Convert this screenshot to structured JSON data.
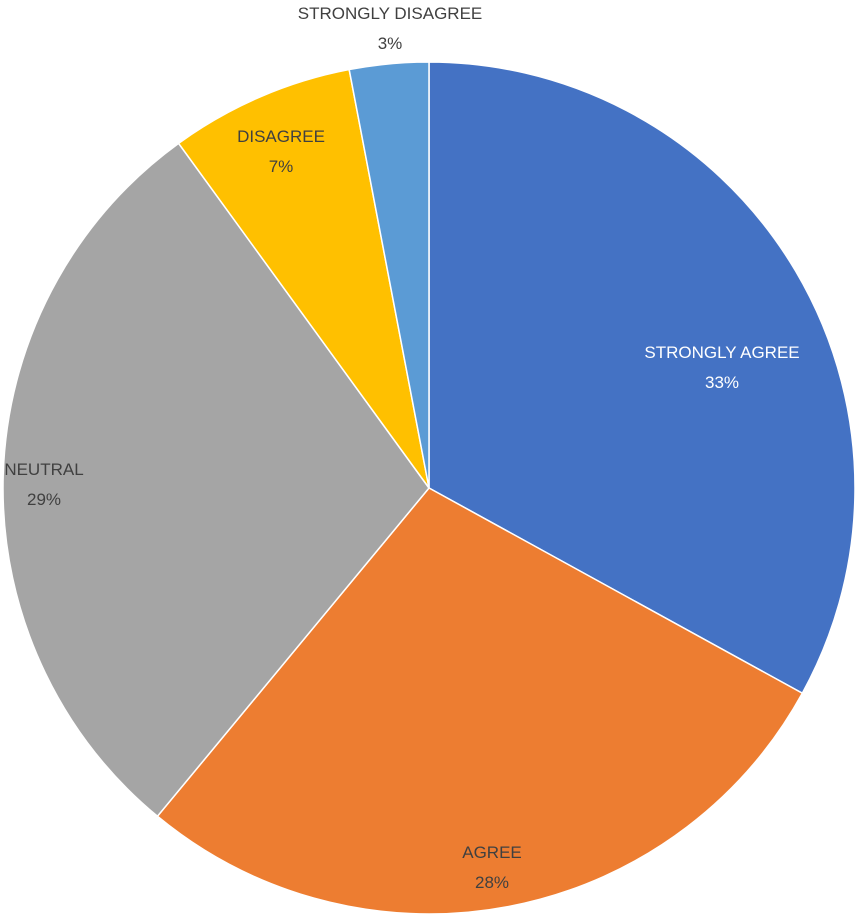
{
  "chart_data": {
    "type": "pie",
    "title": "",
    "categories": [
      "STRONGLY AGREE",
      "AGREE",
      "NEUTRAL",
      "DISAGREE",
      "STRONGLY DISAGREE"
    ],
    "values": [
      33,
      28,
      29,
      7,
      3
    ],
    "labels": [
      "33%",
      "28%",
      "29%",
      "7%",
      "3%"
    ],
    "colors": [
      "#4472C4",
      "#ED7D31",
      "#A5A5A5",
      "#FFC000",
      "#5B9BD5"
    ],
    "label_colors": [
      "#ffffff",
      "#404040",
      "#404040",
      "#404040",
      "#404040"
    ],
    "legend": "none",
    "start_angle": "12 o'clock",
    "direction": "clockwise"
  }
}
